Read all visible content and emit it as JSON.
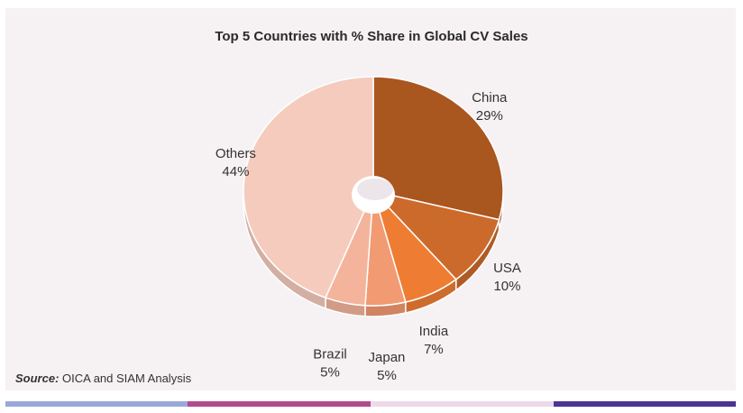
{
  "chart_data": {
    "type": "pie",
    "title": "Top 5 Countries with % Share in Global CV Sales",
    "categories": [
      "China",
      "USA",
      "India",
      "Japan",
      "Brazil",
      "Others"
    ],
    "values": [
      29,
      10,
      7,
      5,
      5,
      44
    ],
    "value_labels": [
      "29%",
      "10%",
      "7%",
      "5%",
      "5%",
      "44%"
    ],
    "colors": [
      "#a9561f",
      "#cc6a2c",
      "#ee7d33",
      "#f29a72",
      "#f4b49c",
      "#f5cbbd"
    ],
    "style": "3d-donut"
  },
  "source": {
    "prefix": "Source:",
    "text": " OICA and SIAM Analysis"
  },
  "footer_colors": [
    "#9aa8d8",
    "#b24b8e",
    "#ecd9ea",
    "#4b3494"
  ]
}
